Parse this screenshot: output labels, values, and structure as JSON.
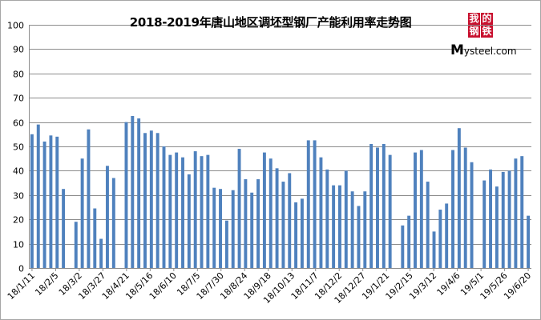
{
  "chart_data": {
    "type": "bar",
    "title": "2018-2019年唐山地区调坯型钢厂产能利用率走势图",
    "xlabel": "",
    "ylabel": "",
    "ylim": [
      0,
      100
    ],
    "yticks": [
      0,
      10,
      20,
      30,
      40,
      50,
      60,
      70,
      80,
      90,
      100
    ],
    "grid": true,
    "legend": "none",
    "bar_color": "#4f81bd",
    "x_tick_labels": [
      "18/1/11",
      "18/2/5",
      "18/3/2",
      "18/3/27",
      "18/4/21",
      "18/5/16",
      "18/6/10",
      "18/7/5",
      "18/7/30",
      "18/8/24",
      "18/9/18",
      "18/10/13",
      "18/11/7",
      "18/12/2",
      "18/12/27",
      "19/1/21",
      "19/2/15",
      "19/3/12",
      "19/4/6",
      "19/5/1",
      "19/5/26",
      "19/6/20"
    ],
    "values": [
      55,
      59,
      52,
      54.5,
      54,
      32.5,
      0,
      19,
      45,
      57,
      24.5,
      12,
      42,
      37,
      0,
      60,
      62.5,
      61.5,
      55.5,
      56.5,
      55.5,
      50,
      46.5,
      47.5,
      45.5,
      38.5,
      48,
      46,
      46.5,
      33,
      32.5,
      19.5,
      32,
      49,
      36.5,
      31,
      36.5,
      47.5,
      45,
      41,
      35.5,
      39,
      27,
      28.5,
      52.5,
      52.5,
      45.5,
      40.5,
      34,
      34,
      40,
      31.5,
      25.5,
      31.5,
      51,
      49.5,
      51,
      46.5,
      0,
      17.5,
      21.5,
      47.5,
      48.5,
      35.5,
      15,
      24,
      26.5,
      48.5,
      57.5,
      49.5,
      43.5,
      0,
      36,
      40.5,
      33.5,
      39.5,
      40,
      45,
      46,
      21.5
    ]
  },
  "logo": {
    "glyphs": [
      "我",
      "的",
      "钢",
      "铁"
    ],
    "text_big": "M",
    "text_rest": "ysteel.com"
  }
}
